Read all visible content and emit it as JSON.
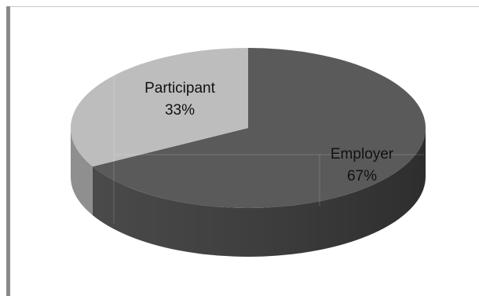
{
  "chart_data": {
    "type": "pie",
    "style": "3d",
    "title": "",
    "slices": [
      {
        "label": "Employer",
        "value": 67,
        "value_label": "67%",
        "color": "#5a5a5a"
      },
      {
        "label": "Participant",
        "value": 33,
        "value_label": "33%",
        "color": "#bdbdbd"
      }
    ],
    "legend": "none"
  }
}
